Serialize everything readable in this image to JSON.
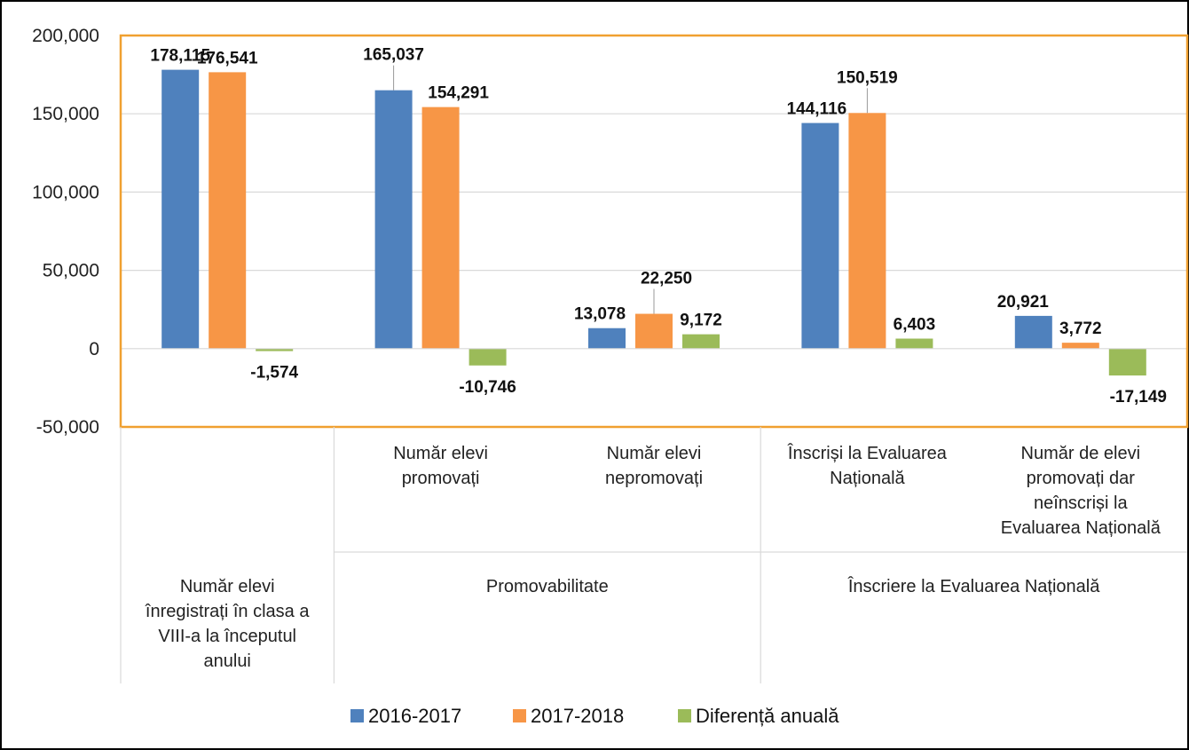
{
  "chart_data": {
    "type": "bar",
    "ylim": [
      -50000,
      200000
    ],
    "ytick_step": 50000,
    "ytick_labels": [
      "-50,000",
      "0",
      "50,000",
      "100,000",
      "150,000",
      "200,000"
    ],
    "grid": true,
    "legend_position": "bottom",
    "categories": [
      "Număr elevi înregistrați în clasa a VIII-a la începutul anului",
      "Număr elevi promovați",
      "Număr elevi nepromovați",
      "Înscriși la Evaluarea Națională",
      "Număr de elevi promovați dar neînscriși la Evaluarea Națională"
    ],
    "category_label_lines": [
      [],
      [
        "Număr elevi",
        "promovați"
      ],
      [
        "Număr elevi",
        "nepromovați"
      ],
      [
        "Înscriși la Evaluarea",
        "Națională"
      ],
      [
        "Număr de elevi",
        "promovați dar",
        "neînscriși la",
        "Evaluarea Națională"
      ]
    ],
    "groups": [
      {
        "label_lines": [
          "Număr elevi",
          "înregistrați în clasa a",
          "VIII-a la începutul",
          "anului"
        ],
        "categories": [
          0
        ]
      },
      {
        "label_lines": [
          "Promovabilitate"
        ],
        "categories": [
          1,
          2
        ]
      },
      {
        "label_lines": [
          "Înscriere la Evaluarea Națională"
        ],
        "categories": [
          3,
          4
        ]
      }
    ],
    "series": [
      {
        "name": "2016-2017",
        "color": "#4f81bd",
        "values": [
          178115,
          165037,
          13078,
          144116,
          20921
        ],
        "labels": [
          "178,115",
          "165,037",
          "13,078",
          "144,116",
          "20,921"
        ]
      },
      {
        "name": "2017-2018",
        "color": "#f79646",
        "values": [
          176541,
          154291,
          22250,
          150519,
          3772
        ],
        "labels": [
          "176,541",
          "154,291",
          "22,250",
          "150,519",
          "3,772"
        ]
      },
      {
        "name": "Diferență anuală",
        "color": "#9bbb59",
        "values": [
          -1574,
          -10746,
          9172,
          6403,
          -17149
        ],
        "labels": [
          "-1,574",
          "-10,746",
          "9,172",
          "6,403",
          "-17,149"
        ]
      }
    ]
  }
}
